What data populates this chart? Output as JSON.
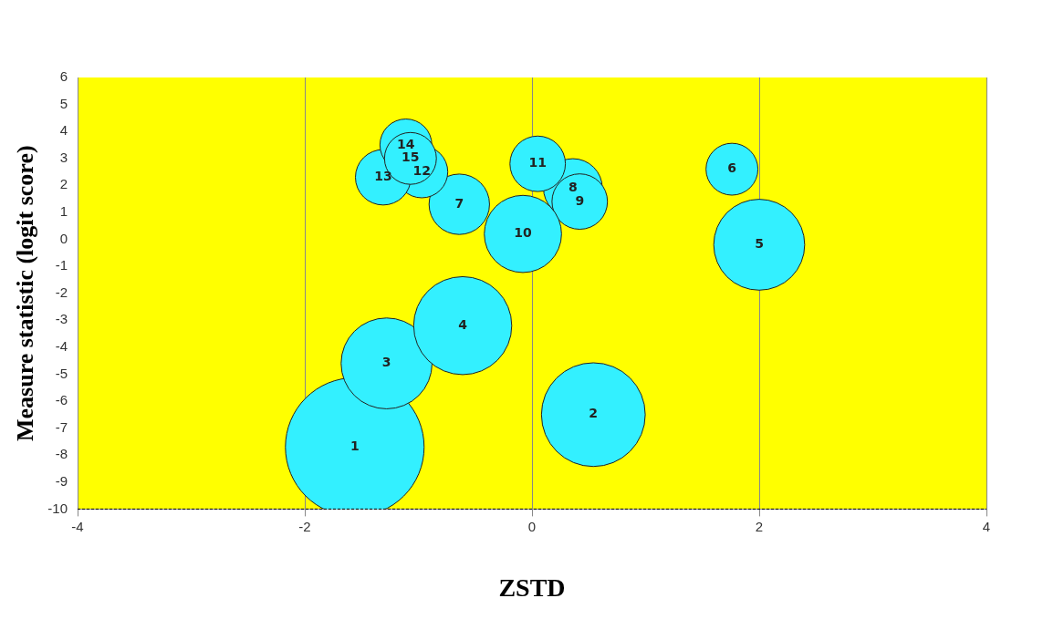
{
  "chart_data": {
    "type": "bubble",
    "xlabel": "ZSTD",
    "ylabel": "Measure statistic (logit score)",
    "x": [
      -1.56,
      0.54,
      -1.28,
      -0.61,
      2.0,
      1.76,
      -0.64,
      0.36,
      0.42,
      -0.08,
      0.05,
      -0.97,
      -1.31,
      -1.11,
      -1.07
    ],
    "series": [
      {
        "color": "#33f0ff",
        "values": [
          -7.7,
          -6.5,
          -4.6,
          -3.2,
          -0.2,
          2.6,
          1.3,
          1.9,
          1.4,
          0.2,
          2.8,
          2.5,
          2.3,
          3.5,
          3.0
        ],
        "sizes": [
          1,
          0.56,
          0.43,
          0.5,
          0.43,
          0.14,
          0.19,
          0.18,
          0.16,
          0.31,
          0.16,
          0.14,
          0.16,
          0.14,
          0.14
        ]
      }
    ],
    "xlim": [
      -4,
      4
    ],
    "xticks": [
      -4,
      -2,
      0,
      2,
      4
    ],
    "ylim": [
      -10,
      6
    ],
    "yticks": [
      -10,
      -9,
      -8,
      -7,
      -6,
      -5,
      -4,
      -3,
      -2,
      -1,
      0,
      1,
      2,
      3,
      4,
      5,
      6
    ],
    "grid": "x",
    "legend": false,
    "annotations": [
      {
        "text": "1",
        "x": -1.56,
        "y": -7.7
      },
      {
        "text": "2",
        "x": 0.54,
        "y": -6.5
      },
      {
        "text": "3",
        "x": -1.28,
        "y": -4.6
      },
      {
        "text": "4",
        "x": -0.61,
        "y": -3.2
      },
      {
        "text": "5",
        "x": 2.0,
        "y": -0.2
      },
      {
        "text": "6",
        "x": 1.76,
        "y": 2.6
      },
      {
        "text": "7",
        "x": -0.64,
        "y": 1.3
      },
      {
        "text": "8",
        "x": 0.36,
        "y": 1.9
      },
      {
        "text": "9",
        "x": 0.42,
        "y": 1.4
      },
      {
        "text": "10",
        "x": -0.08,
        "y": 0.2
      },
      {
        "text": "11",
        "x": 0.05,
        "y": 2.8
      },
      {
        "text": "12",
        "x": -0.97,
        "y": 2.5
      },
      {
        "text": "13",
        "x": -1.31,
        "y": 2.3
      },
      {
        "text": "14",
        "x": -1.11,
        "y": 3.5
      },
      {
        "text": "15",
        "x": -1.07,
        "y": 3.0
      }
    ]
  }
}
